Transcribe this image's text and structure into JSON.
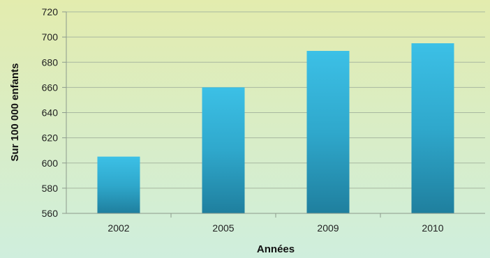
{
  "chart_data": {
    "type": "bar",
    "categories": [
      "2002",
      "2005",
      "2009",
      "2010"
    ],
    "values": [
      605,
      660,
      689,
      695
    ],
    "xlabel": "Années",
    "ylabel": "Sur 100 000 enfants",
    "ylim": [
      560,
      720
    ],
    "yticks": [
      560,
      580,
      600,
      620,
      640,
      660,
      680,
      700,
      720
    ],
    "grid": true,
    "legend": "none",
    "colors": {
      "bar": "#2fa8cc",
      "bar_light": "#3cc0e6",
      "bar_dark": "#1f7f9e",
      "background_top": "#e3ecae",
      "background_bottom": "#cfeedd",
      "grid": "#a8b7a0",
      "axis": "#8c9a8c"
    }
  }
}
